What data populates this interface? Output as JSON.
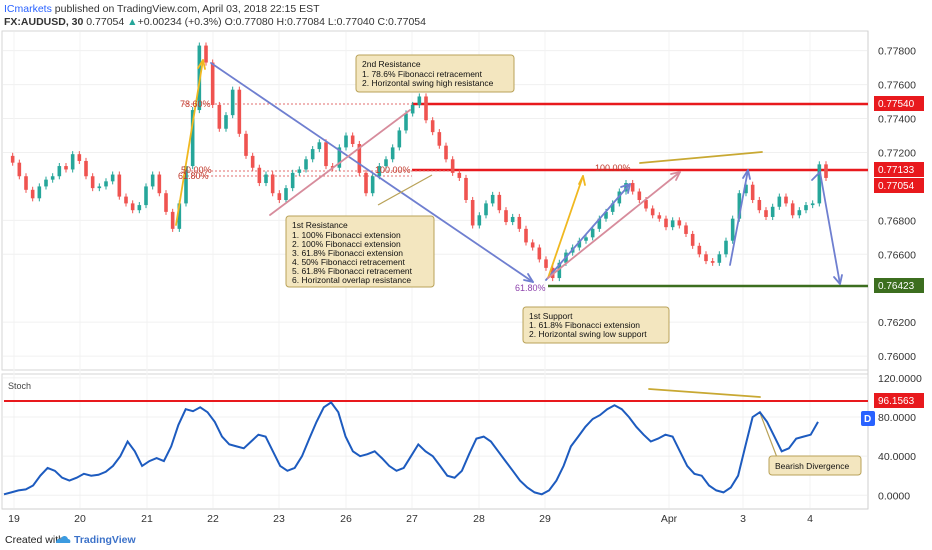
{
  "header": {
    "publisher": "ICmarkets",
    "published_text": "published on TradingView.com, April 03, 2018 22:15 EST",
    "symbol": "FX:AUDUSD, 30",
    "last": "0.77054",
    "change": "+0.00234 (+0.3%)",
    "ohlc": "O:0.77080 H:0.77084 L:0.77040 C:0.77054"
  },
  "footer": {
    "created_with": "Created with",
    "brand": "TradingView"
  },
  "colors": {
    "up": "#26a69a",
    "down": "#ef5350",
    "resistance": "#e8191d",
    "support": "#3c6e1f",
    "projection": "#6f7fd0",
    "impulse": "#f0b820",
    "trendline": "#d78c9c",
    "callout_bg": "#f3e6bf",
    "callout_border": "#b9a258",
    "stoch": "#1d5bbf",
    "divergence": "#c8a832"
  },
  "chart_data": [
    {
      "type": "line",
      "title": "",
      "xlabel": "",
      "ylabel": "",
      "x_ticks": [
        "19",
        "20",
        "21",
        "22",
        "23",
        "26",
        "27",
        "28",
        "29",
        "Apr",
        "3",
        "4"
      ],
      "y_ticks": [
        "0.77800",
        "0.77600",
        "0.77400",
        "0.77200",
        "0.76800",
        "0.76600",
        "0.76200",
        "0.76000"
      ],
      "ylim": [
        0.7593,
        0.7791
      ],
      "price_labels": [
        {
          "value": "0.77540",
          "style": "resistance"
        },
        {
          "value": "0.77133",
          "style": "resistance"
        },
        {
          "value": "0.77054",
          "style": "resistance"
        },
        {
          "value": "0.76423",
          "style": "support"
        }
      ],
      "series": [
        {
          "values": [
            0.7718,
            0.7714,
            0.7706,
            0.7698,
            0.7693,
            0.77,
            0.7704,
            0.7706,
            0.7712,
            0.771,
            0.7719,
            0.7715,
            0.7706,
            0.7699,
            0.77,
            0.7703,
            0.7707,
            0.7694,
            0.769,
            0.7686,
            0.7689,
            0.77,
            0.7707,
            0.7696,
            0.7685,
            0.7675,
            0.769,
            0.7712,
            0.7745,
            0.7783,
            0.7773,
            0.7748,
            0.7734,
            0.7742,
            0.7757,
            0.7731,
            0.7718,
            0.7711,
            0.7702,
            0.7707,
            0.7696,
            0.7692,
            0.7699,
            0.7708,
            0.771,
            0.7716,
            0.7722,
            0.7726,
            0.7712,
            0.7711,
            0.7723,
            0.773,
            0.7725,
            0.7708,
            0.7696,
            0.7706,
            0.7712,
            0.7716,
            0.7723,
            0.7733,
            0.7743,
            0.7748,
            0.7753,
            0.7739,
            0.7732,
            0.7724,
            0.7716,
            0.7708,
            0.7705,
            0.7692,
            0.7677,
            0.7683,
            0.769,
            0.7695,
            0.7686,
            0.7679,
            0.7682,
            0.7675,
            0.7667,
            0.7664,
            0.7657,
            0.7652,
            0.7646,
            0.7655,
            0.7661,
            0.7664,
            0.7668,
            0.767,
            0.7675,
            0.7681,
            0.7685,
            0.769,
            0.7697,
            0.7702,
            0.7697,
            0.7692,
            0.7687,
            0.7683,
            0.7681,
            0.7676,
            0.768,
            0.7677,
            0.7672,
            0.7665,
            0.766,
            0.7656,
            0.7655,
            0.766,
            0.7668,
            0.7681,
            0.7696,
            0.7701,
            0.7692,
            0.7686,
            0.7682,
            0.7688,
            0.7694,
            0.769,
            0.7683,
            0.7686,
            0.7689,
            0.769,
            0.7713,
            0.7705
          ]
        }
      ],
      "indicator": {
        "name": "Stoch",
        "y_ticks": [
          "120.0000",
          "80.0000",
          "40.0000",
          "0.0000"
        ],
        "ylim": [
          -13,
          123
        ],
        "level_label": "96.1563",
        "badge": "D",
        "values": [
          1,
          3,
          5,
          6,
          10,
          20,
          28,
          25,
          18,
          15,
          18,
          22,
          20,
          21,
          24,
          30,
          40,
          55,
          45,
          30,
          35,
          38,
          35,
          50,
          72,
          88,
          86,
          90,
          85,
          75,
          60,
          52,
          50,
          48,
          55,
          62,
          60,
          45,
          30,
          25,
          28,
          40,
          58,
          75,
          90,
          95,
          85,
          60,
          45,
          40,
          42,
          45,
          38,
          30,
          25,
          28,
          40,
          52,
          45,
          40,
          30,
          20,
          18,
          25,
          42,
          58,
          60,
          55,
          45,
          35,
          25,
          15,
          8,
          3,
          1,
          5,
          15,
          30,
          50,
          60,
          70,
          78,
          82,
          88,
          92,
          88,
          80,
          70,
          62,
          55,
          58,
          62,
          60,
          45,
          30,
          22,
          20,
          10,
          5,
          3,
          8,
          20,
          50,
          80,
          85,
          75,
          60,
          45,
          48,
          58,
          60,
          62,
          75
        ]
      },
      "annotations": {
        "first_resistance": {
          "title": "1st Resistance",
          "lines": [
            "1. 100% Fibonacci extension",
            "2. 100% Fibonacci extension",
            "3. 61.8% Fibonacci extension",
            "4. 50% Fibonacci retracement",
            "5. 61.8% Fibonacci retracement",
            "6. Horizontal overlap resistance"
          ]
        },
        "second_resistance": {
          "title": "2nd Resistance",
          "lines": [
            "1. 78.6% Fibonacci retracement",
            "2. Horizontal swing high resistance"
          ]
        },
        "first_support": {
          "title": "1st Support",
          "lines": [
            "1. 61.8% Fibonacci extension",
            "2. Horizontal swing low support"
          ]
        },
        "bearish_divergence": "Bearish Divergence",
        "fib_labels": [
          "78.60%",
          "50.00%",
          "61.80%",
          "100.00%",
          "100.00%",
          "61.80%"
        ]
      }
    }
  ]
}
